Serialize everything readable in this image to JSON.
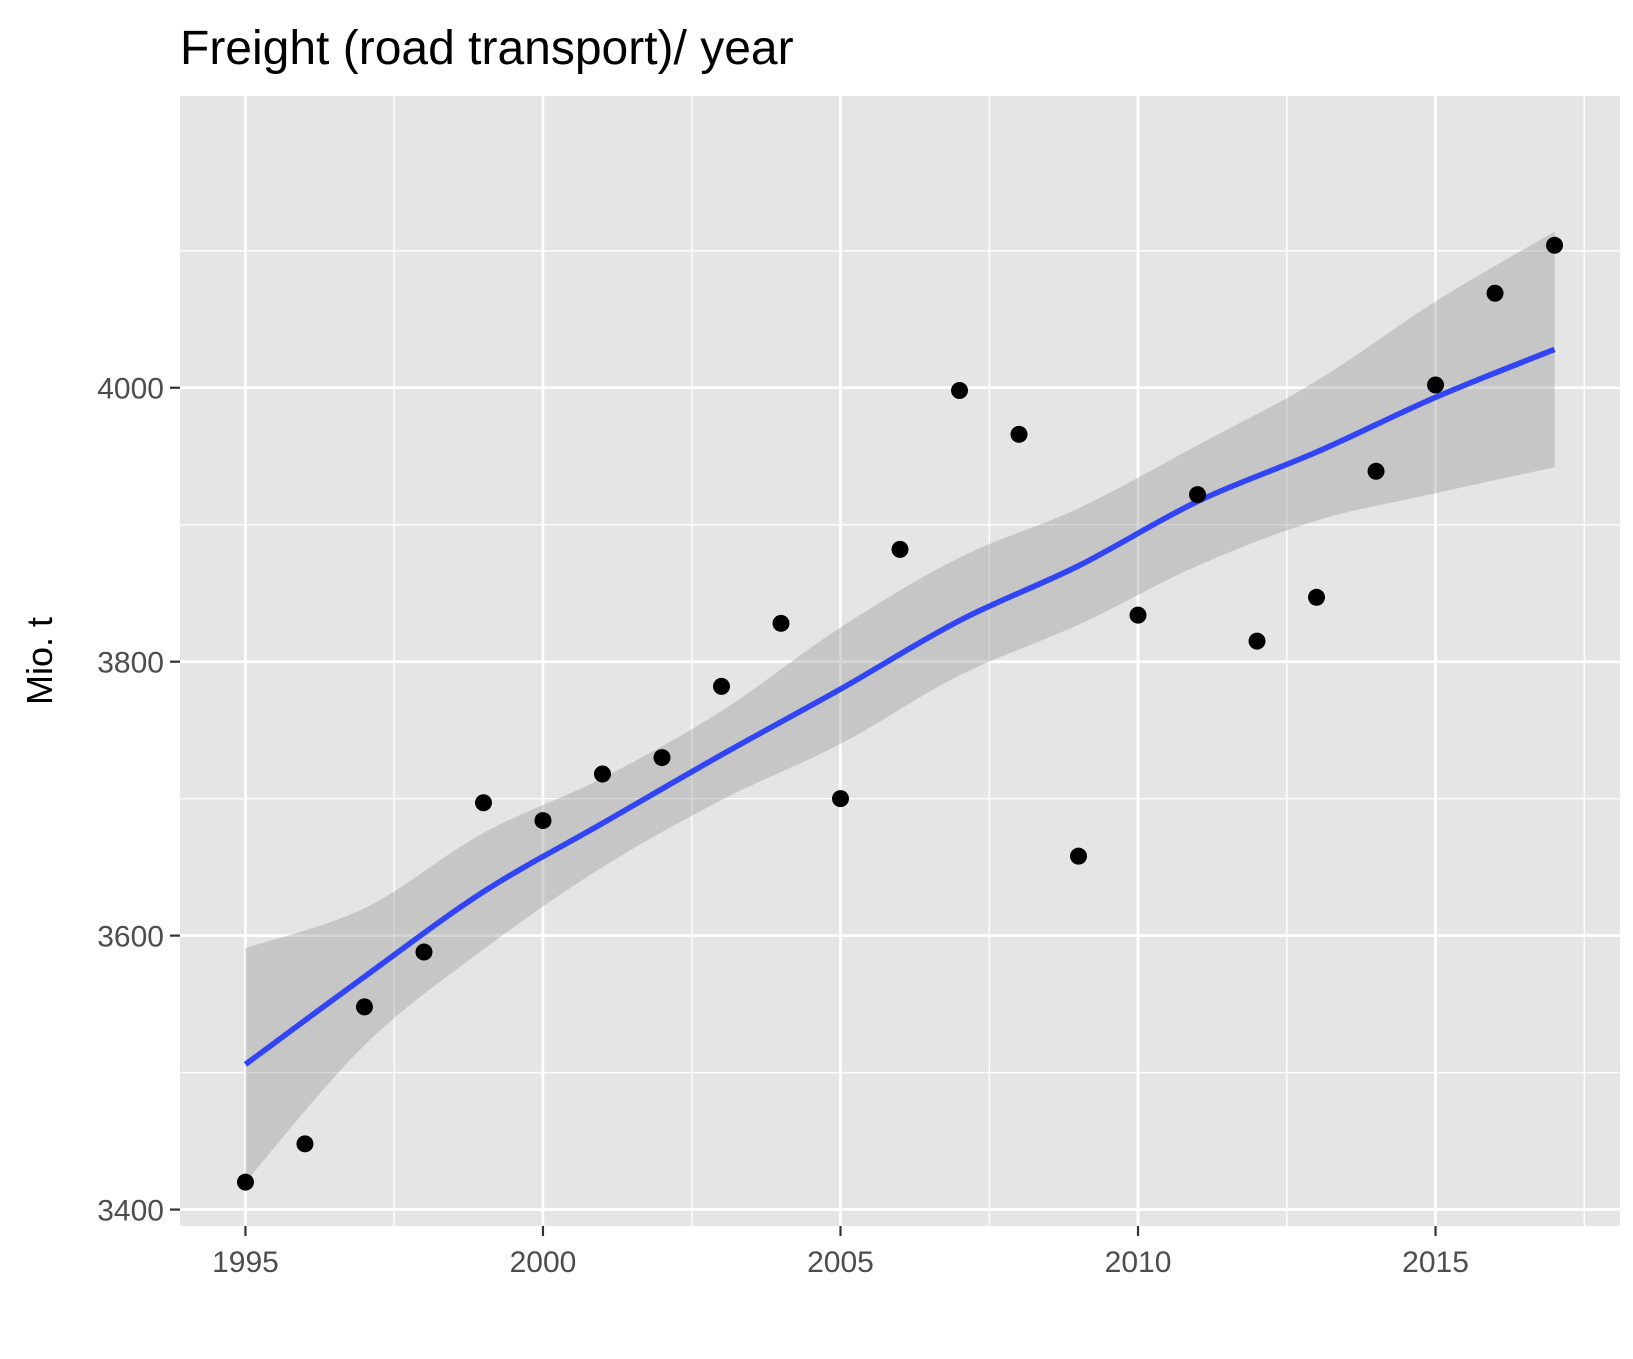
{
  "chart_data": {
    "type": "scatter",
    "title": "Freight (road transport)/ year",
    "xlabel": "",
    "ylabel": "Mio. t",
    "xlim": [
      1993.9,
      2018.1
    ],
    "ylim": [
      3388,
      4213
    ],
    "x_ticks": [
      1995,
      2000,
      2005,
      2010,
      2015
    ],
    "y_ticks": [
      3400,
      3600,
      3800,
      4000
    ],
    "x_tick_labels": [
      "1995",
      "2000",
      "2005",
      "2010",
      "2015"
    ],
    "y_tick_labels": [
      "3400",
      "3600",
      "3800",
      "4000"
    ],
    "grid": true,
    "legend": "none",
    "colors": {
      "panel_background": "#e5e5e5",
      "grid": "#ffffff",
      "points": "#000000",
      "smooth_line": "#3145f5",
      "confidence_band": "#999999"
    },
    "series": [
      {
        "points": [
          {
            "x": 1995,
            "y": 3420
          },
          {
            "x": 1996,
            "y": 3448
          },
          {
            "x": 1997,
            "y": 3548
          },
          {
            "x": 1998,
            "y": 3588
          },
          {
            "x": 1999,
            "y": 3697
          },
          {
            "x": 2000,
            "y": 3684
          },
          {
            "x": 2001,
            "y": 3718
          },
          {
            "x": 2002,
            "y": 3730
          },
          {
            "x": 2003,
            "y": 3782
          },
          {
            "x": 2004,
            "y": 3828
          },
          {
            "x": 2005,
            "y": 3700
          },
          {
            "x": 2006,
            "y": 3882
          },
          {
            "x": 2007,
            "y": 3998
          },
          {
            "x": 2008,
            "y": 3966
          },
          {
            "x": 2009,
            "y": 3658
          },
          {
            "x": 2010,
            "y": 3834
          },
          {
            "x": 2011,
            "y": 3922
          },
          {
            "x": 2012,
            "y": 3815
          },
          {
            "x": 2013,
            "y": 3847
          },
          {
            "x": 2014,
            "y": 3939
          },
          {
            "x": 2015,
            "y": 4002
          },
          {
            "x": 2016,
            "y": 4069
          },
          {
            "x": 2017,
            "y": 4104
          }
        ]
      }
    ],
    "smooth": {
      "method": "loess",
      "fit": [
        {
          "x": 1995,
          "y": 3506,
          "lower": 3420,
          "upper": 3591
        },
        {
          "x": 1997,
          "y": 3570,
          "lower": 3520,
          "upper": 3620
        },
        {
          "x": 1999,
          "y": 3632,
          "lower": 3590,
          "upper": 3675
        },
        {
          "x": 2001,
          "y": 3682,
          "lower": 3650,
          "upper": 3715
        },
        {
          "x": 2003,
          "y": 3732,
          "lower": 3699,
          "upper": 3764
        },
        {
          "x": 2005,
          "y": 3780,
          "lower": 3740,
          "upper": 3825
        },
        {
          "x": 2007,
          "y": 3830,
          "lower": 3790,
          "upper": 3876
        },
        {
          "x": 2009,
          "y": 3870,
          "lower": 3827,
          "upper": 3912
        },
        {
          "x": 2011,
          "y": 3917,
          "lower": 3870,
          "upper": 3958
        },
        {
          "x": 2013,
          "y": 3953,
          "lower": 3903,
          "upper": 4005
        },
        {
          "x": 2015,
          "y": 3993,
          "lower": 3923,
          "upper": 4063
        },
        {
          "x": 2017,
          "y": 4028,
          "lower": 3942,
          "upper": 4114
        }
      ]
    }
  }
}
